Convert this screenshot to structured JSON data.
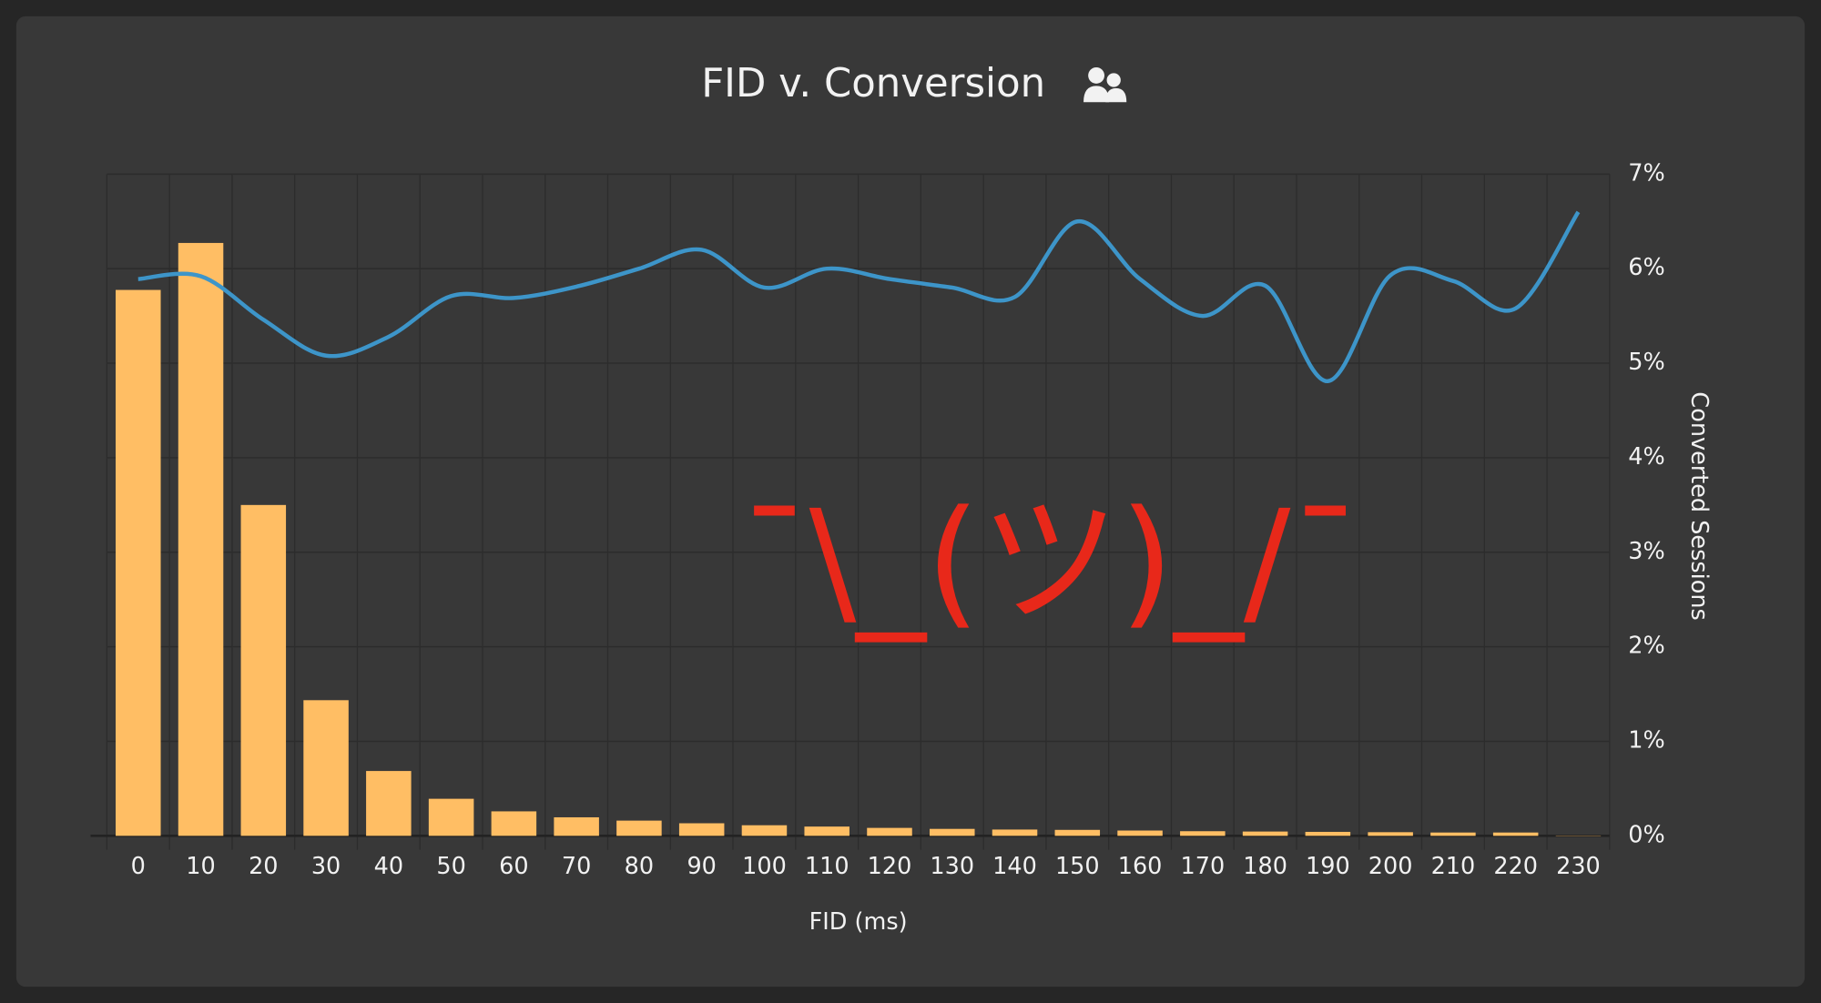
{
  "chart_data": {
    "type": "bar_line",
    "title": "FID v. Conversion",
    "x_label": "FID (ms)",
    "y2_label": "Converted Sessions",
    "annotation": "¯\\_(ツ)_/¯",
    "annotation_color": "#e8281a",
    "categories": [
      "0",
      "10",
      "20",
      "30",
      "40",
      "50",
      "60",
      "70",
      "80",
      "90",
      "100",
      "110",
      "120",
      "130",
      "140",
      "150",
      "160",
      "170",
      "180",
      "190",
      "200",
      "210",
      "220",
      "230"
    ],
    "series": [
      {
        "type": "bar",
        "color": "#ffbe64",
        "axis": "y",
        "values": [
          82.5,
          89.6,
          50,
          20.5,
          9.8,
          5.6,
          3.7,
          2.8,
          2.3,
          1.9,
          1.6,
          1.4,
          1.2,
          1.05,
          0.95,
          0.9,
          0.8,
          0.7,
          0.65,
          0.6,
          0.55,
          0.5,
          0.5,
          0.05
        ]
      },
      {
        "type": "line",
        "color": "#3d95c9",
        "axis": "y2",
        "values": [
          5.89,
          5.92,
          5.46,
          5.08,
          5.28,
          5.71,
          5.69,
          5.81,
          6.0,
          6.2,
          5.8,
          6.0,
          5.89,
          5.8,
          5.7,
          6.5,
          5.89,
          5.5,
          5.82,
          4.81,
          5.93,
          5.87,
          5.58,
          6.6
        ]
      }
    ],
    "ylim": [
      0,
      100
    ],
    "y2lim": [
      0,
      7
    ],
    "y2ticks": [
      {
        "value": 0,
        "label": "0%"
      },
      {
        "value": 1,
        "label": "1%"
      },
      {
        "value": 2,
        "label": "2%"
      },
      {
        "value": 3,
        "label": "3%"
      },
      {
        "value": 4,
        "label": "4%"
      },
      {
        "value": 5,
        "label": "5%"
      },
      {
        "value": 6,
        "label": "6%"
      },
      {
        "value": 7,
        "label": "7%"
      }
    ],
    "grid": true
  }
}
